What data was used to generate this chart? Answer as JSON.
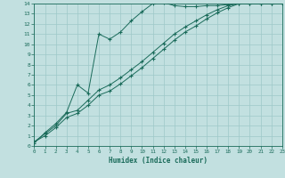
{
  "bg_color": "#c2e0e0",
  "grid_color": "#9ec8c8",
  "line_color": "#1a6b5a",
  "xlabel": "Humidex (Indice chaleur)",
  "xlim": [
    0,
    23
  ],
  "ylim": [
    0,
    14
  ],
  "xticks": [
    0,
    1,
    2,
    3,
    4,
    5,
    6,
    7,
    8,
    9,
    10,
    11,
    12,
    13,
    14,
    15,
    16,
    17,
    18,
    19,
    20,
    21,
    22,
    23
  ],
  "yticks": [
    0,
    1,
    2,
    3,
    4,
    5,
    6,
    7,
    8,
    9,
    10,
    11,
    12,
    13,
    14
  ],
  "line1_x": [
    0,
    1,
    2,
    3,
    4,
    5,
    6,
    7,
    8,
    9,
    10,
    11,
    12,
    13,
    14,
    15,
    16,
    17,
    18,
    19,
    20,
    21,
    22,
    23
  ],
  "line1_y": [
    0.4,
    1.2,
    2.0,
    3.2,
    3.5,
    4.5,
    5.5,
    6.0,
    6.7,
    7.5,
    8.3,
    9.2,
    10.1,
    11.0,
    11.7,
    12.3,
    12.9,
    13.4,
    13.8,
    14.0,
    14.0,
    14.0,
    14.0,
    14.0
  ],
  "line2_x": [
    0,
    1,
    2,
    3,
    4,
    5,
    6,
    7,
    8,
    9,
    10,
    11,
    12,
    13,
    14,
    15,
    16,
    17,
    18,
    19,
    20,
    21,
    22,
    23
  ],
  "line2_y": [
    0.4,
    1.0,
    1.8,
    2.8,
    3.2,
    4.0,
    5.0,
    5.4,
    6.1,
    6.9,
    7.7,
    8.6,
    9.5,
    10.4,
    11.2,
    11.8,
    12.5,
    13.1,
    13.6,
    14.0,
    14.0,
    14.0,
    14.0,
    14.0
  ],
  "line3_x": [
    0,
    1,
    2,
    3,
    4,
    5,
    6,
    7,
    8,
    9,
    10,
    11,
    12,
    13,
    14,
    15,
    16,
    17,
    18,
    19,
    20,
    21,
    22,
    23
  ],
  "line3_y": [
    0.3,
    1.3,
    2.2,
    3.3,
    6.0,
    5.2,
    11.0,
    10.5,
    11.2,
    12.3,
    13.2,
    14.0,
    14.1,
    13.8,
    13.7,
    13.7,
    13.8,
    13.8,
    13.9,
    14.0,
    14.0,
    14.0,
    14.0,
    14.2
  ]
}
